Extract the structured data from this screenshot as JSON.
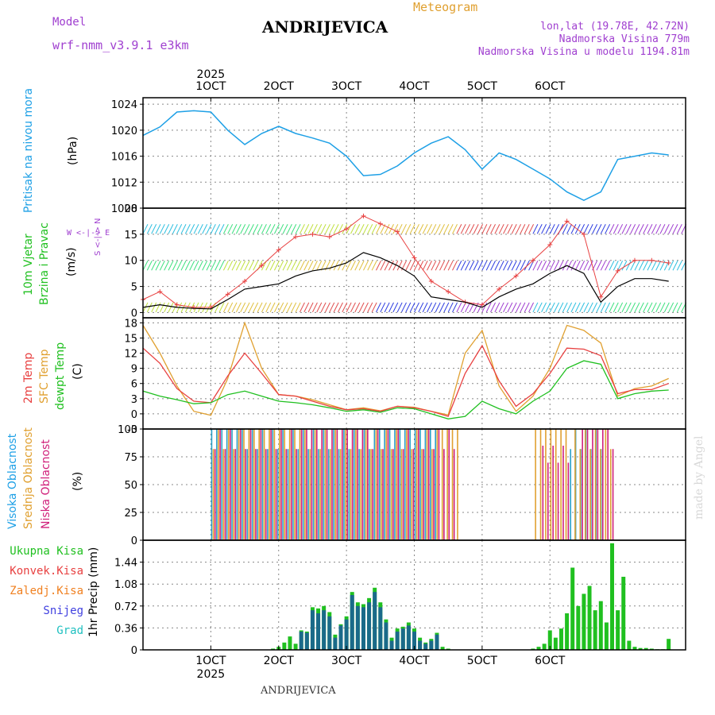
{
  "header": {
    "model_label": "Model",
    "model_name": "wrf-nmm_v3.9.1 e3km",
    "station": "ANDRIJEVICA",
    "product": "Meteogram",
    "lonlat": "lon,lat (19.78E, 42.72N)",
    "elevation": "Nadmorska Visina 779m",
    "model_elevation": "Nadmorska Visina u modelu 1194.81m",
    "bottom_station": "ANDRIJEVICA",
    "watermark": "made by Angel"
  },
  "time_axis": {
    "year": "2025",
    "labels": [
      "1OCT",
      "2OCT",
      "3OCT",
      "4OCT",
      "5OCT",
      "6OCT"
    ],
    "label_hours": [
      24,
      48,
      72,
      96,
      120,
      144
    ]
  },
  "panel_labels": {
    "pressure": {
      "name": "Pritisak na nivou mora",
      "unit": "(hPa)"
    },
    "wind": {
      "name1": "10m Vjetar",
      "name2": "Brzina i Pravac",
      "unit": "(m/s)",
      "compass": "W <-|-> E",
      "compass_v": "S <-|-> N"
    },
    "temp": {
      "name1": "2m Temp",
      "name2": "SFC Temp",
      "name3": "dewpt Temp",
      "unit": "(C)"
    },
    "cloud": {
      "name1": "Visoka Oblacnost",
      "name2": "Srednja Oblacnost",
      "name3": "Niska Oblacnost",
      "unit": "(%)"
    },
    "precip": {
      "legend": [
        "Ukupna Kisa",
        "Konvek.Kisa",
        "Zaledj.Kisa",
        "Snijeg",
        "Grad"
      ],
      "unit": "1hr Precip (mm)"
    }
  },
  "colors": {
    "pressure": "#1ea0e6",
    "t2m": "#e84040",
    "tsfc": "#e0a030",
    "dewpt": "#20c020",
    "gust": "#e84040",
    "wind": "#000000",
    "high": "#2aa0c8",
    "mid": "#e0a030",
    "low": "#d0207a",
    "total": "#20c020",
    "conv": "#e84040",
    "frz": "#f08020",
    "snow": "#4040e0",
    "grad": "#20c0c0",
    "precipdark": "#1a6a8a"
  },
  "chart_data": [
    {
      "type": "line",
      "title": "Pritisak na nivou mora",
      "ylabel": "(hPa)",
      "ylim": [
        1008,
        1025
      ],
      "yticks": [
        1008,
        1012,
        1016,
        1020,
        1024
      ],
      "x": [
        0,
        6,
        12,
        18,
        24,
        30,
        36,
        42,
        48,
        54,
        60,
        66,
        72,
        78,
        84,
        90,
        96,
        102,
        108,
        114,
        120,
        126,
        132,
        138,
        144,
        150,
        156,
        162,
        168,
        174,
        180,
        186
      ],
      "series": [
        {
          "name": "MSLP",
          "values": [
            1019.2,
            1020.5,
            1022.8,
            1023.0,
            1022.8,
            1020.0,
            1017.8,
            1019.5,
            1020.6,
            1019.5,
            1018.8,
            1018.0,
            1016.0,
            1013.0,
            1013.2,
            1014.5,
            1016.5,
            1018.0,
            1019.0,
            1017.0,
            1014.0,
            1016.5,
            1015.5,
            1014.0,
            1012.5,
            1010.5,
            1009.2,
            1010.5,
            1015.5,
            1016.0,
            1016.5,
            1016.2
          ]
        }
      ]
    },
    {
      "type": "line",
      "title": "10m Vjetar Brzina i Pravac",
      "ylabel": "(m/s)",
      "ylim": [
        -1,
        20
      ],
      "yticks": [
        0,
        5,
        10,
        15,
        20
      ],
      "x": [
        0,
        6,
        12,
        18,
        24,
        30,
        36,
        42,
        48,
        54,
        60,
        66,
        72,
        78,
        84,
        90,
        96,
        102,
        108,
        114,
        120,
        126,
        132,
        138,
        144,
        150,
        156,
        162,
        168,
        174,
        180,
        186
      ],
      "series": [
        {
          "name": "Brzina",
          "values": [
            1.0,
            1.5,
            1.0,
            0.8,
            0.7,
            2.5,
            4.5,
            5.0,
            5.5,
            7.0,
            8.0,
            8.5,
            9.5,
            11.5,
            10.5,
            9.0,
            7.0,
            3.0,
            2.5,
            2.0,
            1.0,
            3.0,
            4.5,
            5.5,
            7.5,
            9.0,
            7.5,
            2.0,
            5.0,
            6.5,
            6.5,
            6.0
          ]
        },
        {
          "name": "Udar",
          "values": [
            2.5,
            4.0,
            1.5,
            1.0,
            1.0,
            3.5,
            6.0,
            9.0,
            12.0,
            14.5,
            15.0,
            14.5,
            16.0,
            18.5,
            17.0,
            15.5,
            10.5,
            6.0,
            4.0,
            2.0,
            1.5,
            4.5,
            7.0,
            10.0,
            13.0,
            17.5,
            15.0,
            3.0,
            8.0,
            10.0,
            10.0,
            9.5
          ]
        }
      ]
    },
    {
      "type": "line",
      "title": "Temperatura",
      "ylabel": "(C)",
      "ylim": [
        -3,
        19
      ],
      "yticks": [
        -3,
        0,
        3,
        6,
        9,
        12,
        15,
        18
      ],
      "x": [
        0,
        6,
        12,
        18,
        24,
        30,
        36,
        42,
        48,
        54,
        60,
        66,
        72,
        78,
        84,
        90,
        96,
        102,
        108,
        114,
        120,
        126,
        132,
        138,
        144,
        150,
        156,
        162,
        168,
        174,
        180,
        186
      ],
      "series": [
        {
          "name": "2m Temp",
          "values": [
            13.0,
            10.0,
            5.0,
            2.5,
            2.2,
            7.5,
            12.0,
            8.0,
            3.8,
            3.5,
            2.5,
            1.5,
            0.8,
            1.0,
            0.5,
            1.5,
            1.2,
            0.5,
            -0.5,
            8.0,
            13.5,
            6.5,
            1.5,
            4.0,
            8.0,
            13.0,
            12.8,
            11.5,
            4.0,
            4.8,
            4.8,
            6.0
          ]
        },
        {
          "name": "SFC Temp",
          "values": [
            17.5,
            12.0,
            5.5,
            0.5,
            -0.3,
            7.0,
            18.0,
            9.0,
            3.8,
            3.5,
            2.8,
            1.8,
            0.8,
            1.2,
            0.6,
            1.5,
            1.3,
            0.5,
            -0.2,
            12.0,
            16.5,
            5.5,
            0.5,
            3.5,
            9.0,
            17.5,
            16.5,
            14.0,
            3.5,
            5.0,
            5.5,
            7.0
          ]
        },
        {
          "name": "dewpt Temp",
          "values": [
            4.5,
            3.5,
            2.8,
            2.0,
            2.2,
            3.8,
            4.5,
            3.5,
            2.5,
            2.2,
            1.8,
            1.2,
            0.5,
            0.8,
            0.3,
            1.2,
            1.0,
            0.0,
            -1.0,
            -0.5,
            2.5,
            1.0,
            0.0,
            2.5,
            4.5,
            9.0,
            10.5,
            9.8,
            3.0,
            4.0,
            4.5,
            4.7
          ]
        }
      ]
    },
    {
      "type": "bar",
      "title": "Oblacnost",
      "ylabel": "(%)",
      "ylim": [
        0,
        100
      ],
      "yticks": [
        0,
        25,
        50,
        75,
        100
      ],
      "series": [
        {
          "name": "Visoka",
          "segments": [
            [
              24,
              104,
              100
            ],
            [
              151,
              162,
              100
            ]
          ]
        },
        {
          "name": "Srednja",
          "segments": [
            [
              24,
              112,
              100
            ],
            [
              138,
              150,
              100
            ],
            [
              152,
              166,
              100
            ]
          ]
        },
        {
          "name": "Niska",
          "segments": [
            [
              24,
              110,
              100
            ],
            [
              140,
              150,
              85
            ],
            [
              154,
              166,
              100
            ]
          ]
        }
      ]
    },
    {
      "type": "bar",
      "title": "1hr Precip",
      "ylabel": "1hr Precip (mm)",
      "ylim": [
        0,
        1.8
      ],
      "yticks": [
        0,
        0.36,
        0.72,
        1.08,
        1.44
      ],
      "x": [
        46,
        48,
        50,
        52,
        54,
        56,
        58,
        60,
        62,
        64,
        66,
        68,
        70,
        72,
        74,
        76,
        78,
        80,
        82,
        84,
        86,
        88,
        90,
        92,
        94,
        96,
        98,
        100,
        102,
        104,
        106,
        108,
        138,
        140,
        142,
        144,
        146,
        148,
        150,
        152,
        154,
        156,
        158,
        160,
        162,
        164,
        166,
        168,
        170,
        172,
        174,
        176,
        178,
        180,
        182,
        184,
        186
      ],
      "series": [
        {
          "name": "Ukupna Kisa",
          "values": [
            0.02,
            0.05,
            0.12,
            0.22,
            0.1,
            0.32,
            0.3,
            0.7,
            0.68,
            0.72,
            0.62,
            0.25,
            0.42,
            0.55,
            0.95,
            0.78,
            0.75,
            0.85,
            1.02,
            0.78,
            0.5,
            0.2,
            0.35,
            0.38,
            0.45,
            0.35,
            0.2,
            0.12,
            0.18,
            0.28,
            0.05,
            0.02,
            0.02,
            0.05,
            0.1,
            0.32,
            0.2,
            0.35,
            0.6,
            1.35,
            0.72,
            0.92,
            1.05,
            0.65,
            0.8,
            0.45,
            1.75,
            0.65,
            1.2,
            0.15,
            0.05,
            0.03,
            0.03,
            0.02,
            0.01,
            0.01,
            0.18
          ]
        },
        {
          "name": "Snijeg",
          "values": [
            0,
            0,
            0,
            0,
            0,
            0.3,
            0.28,
            0.65,
            0.6,
            0.65,
            0.55,
            0.2,
            0.4,
            0.5,
            0.9,
            0.72,
            0.7,
            0.78,
            0.95,
            0.7,
            0.45,
            0.15,
            0.3,
            0.35,
            0.4,
            0.3,
            0.15,
            0.1,
            0.15,
            0.25,
            0,
            0,
            0,
            0,
            0,
            0,
            0,
            0,
            0,
            0,
            0,
            0,
            0,
            0,
            0,
            0,
            0,
            0,
            0,
            0,
            0,
            0,
            0,
            0,
            0,
            0,
            0
          ]
        }
      ]
    }
  ]
}
